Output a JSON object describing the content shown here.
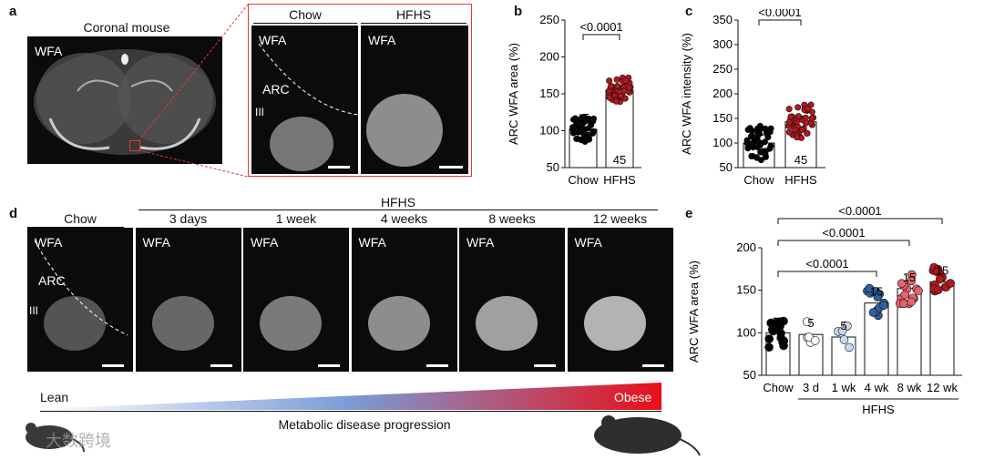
{
  "panel_a": {
    "label": "a",
    "title": "Coronal mouse",
    "brain_marker": "WFA",
    "inset": {
      "chow_header": "Chow",
      "hfhs_header": "HFHS",
      "chow_marker": "WFA",
      "hfhs_marker": "WFA",
      "arc_label": "ARC",
      "iii_label": "III"
    }
  },
  "panel_d": {
    "label": "d",
    "hfhs_header": "HFHS",
    "tiles": [
      {
        "header": "Chow",
        "marker": "WFA"
      },
      {
        "header": "3 days",
        "marker": "WFA"
      },
      {
        "header": "1 week",
        "marker": "WFA"
      },
      {
        "header": "4 weeks",
        "marker": "WFA"
      },
      {
        "header": "8 weeks",
        "marker": "WFA"
      },
      {
        "header": "12 weeks",
        "marker": "WFA"
      }
    ],
    "arc_label": "ARC",
    "iii_label": "III",
    "gradient_left": "Lean",
    "gradient_right": "Obese",
    "progression": "Metabolic disease progression",
    "colors": {
      "lean": "#ffffff",
      "mid": "#7a9bd6",
      "obese": "#e8101a"
    }
  },
  "watermark": "大数跨境",
  "chart_data": [
    {
      "id": "b",
      "type": "bar",
      "label": "b",
      "ylabel": "ARC WFA area (%)",
      "ylim": [
        50,
        250
      ],
      "yticks": [
        50,
        100,
        150,
        200,
        250
      ],
      "categories": [
        "Chow",
        "HFHS"
      ],
      "values": [
        102,
        155
      ],
      "n_labels": [
        "45",
        "45"
      ],
      "colors": [
        "#000000",
        "#b3171d"
      ],
      "comparison": "<0.0001"
    },
    {
      "id": "c",
      "type": "bar",
      "label": "c",
      "ylabel": "ARC WFA intensity (%)",
      "ylim": [
        50,
        350
      ],
      "yticks": [
        50,
        100,
        150,
        200,
        250,
        300,
        350
      ],
      "categories": [
        "Chow",
        "HFHS"
      ],
      "values": [
        100,
        143
      ],
      "n_labels": [
        "45",
        "45"
      ],
      "colors": [
        "#000000",
        "#b3171d"
      ],
      "comparison": "<0.0001"
    },
    {
      "id": "e",
      "type": "bar",
      "label": "e",
      "ylabel": "ARC WFA area (%)",
      "ylim": [
        50,
        200
      ],
      "yticks": [
        50,
        100,
        150,
        200
      ],
      "categories": [
        "Chow",
        "3 d",
        "1 wk",
        "4 wk",
        "8 wk",
        "12 wk"
      ],
      "group_label": "HFHS",
      "values": [
        100,
        98,
        95,
        135,
        152,
        160
      ],
      "n_labels": [
        "15",
        "5",
        "5",
        "15",
        "15",
        "15"
      ],
      "colors": [
        "#000000",
        "#ffffff",
        "#c7d8ee",
        "#2f5f9e",
        "#e9636b",
        "#b3171d"
      ],
      "comparisons": [
        "<0.0001",
        "<0.0001",
        "<0.0001"
      ]
    }
  ]
}
